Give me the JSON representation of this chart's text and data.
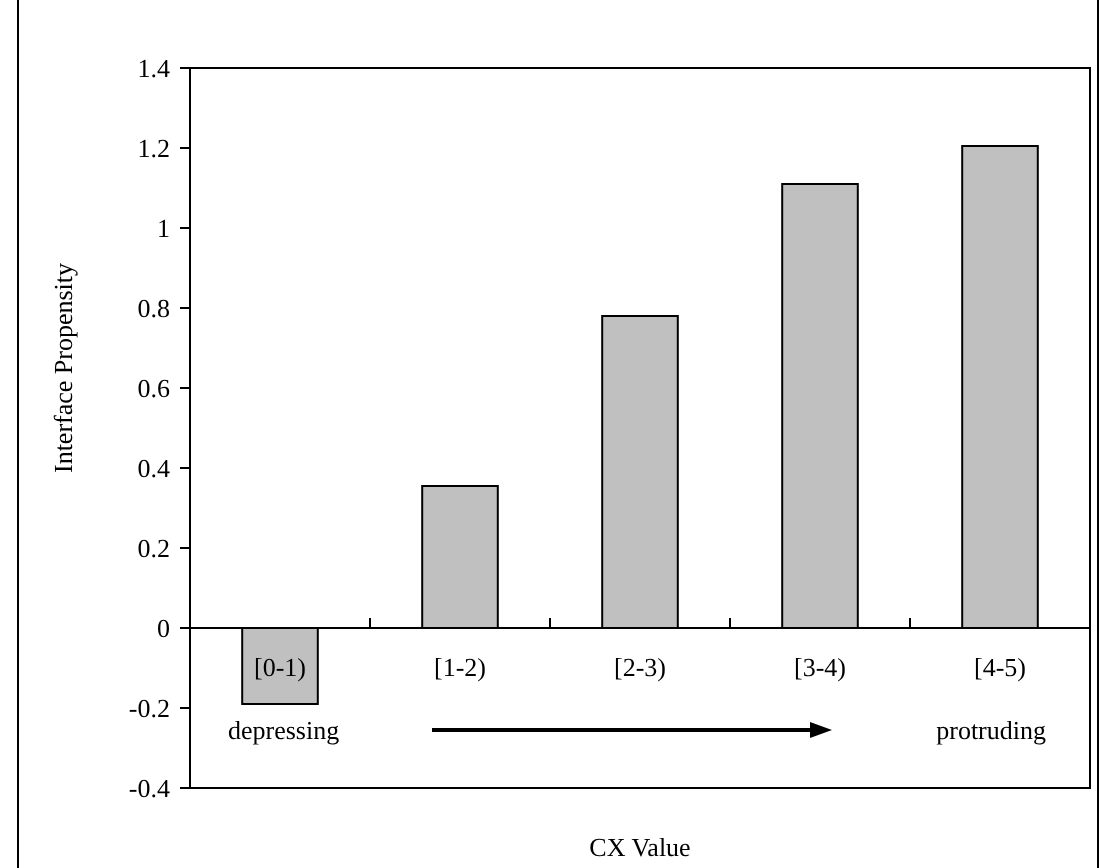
{
  "chart_data": {
    "type": "bar",
    "xlabel": "CX Value",
    "ylabel": "Interface Propensity",
    "categories": [
      "[0-1)",
      "[1-2)",
      "[2-3)",
      "[3-4)",
      "[4-5)"
    ],
    "values": [
      -0.19,
      0.355,
      0.78,
      1.11,
      1.205
    ],
    "color": "#c0c0c0",
    "ylim": [
      -0.4,
      1.4
    ],
    "yticks": [
      {
        "value": -0.4,
        "label": "-0.4"
      },
      {
        "value": -0.2,
        "label": "-0.2"
      },
      0,
      0.2,
      0.4,
      0.6,
      0.8,
      1,
      1.2,
      1.4
    ],
    "annotations": [
      "depressing",
      "protruding"
    ],
    "grid": false
  }
}
